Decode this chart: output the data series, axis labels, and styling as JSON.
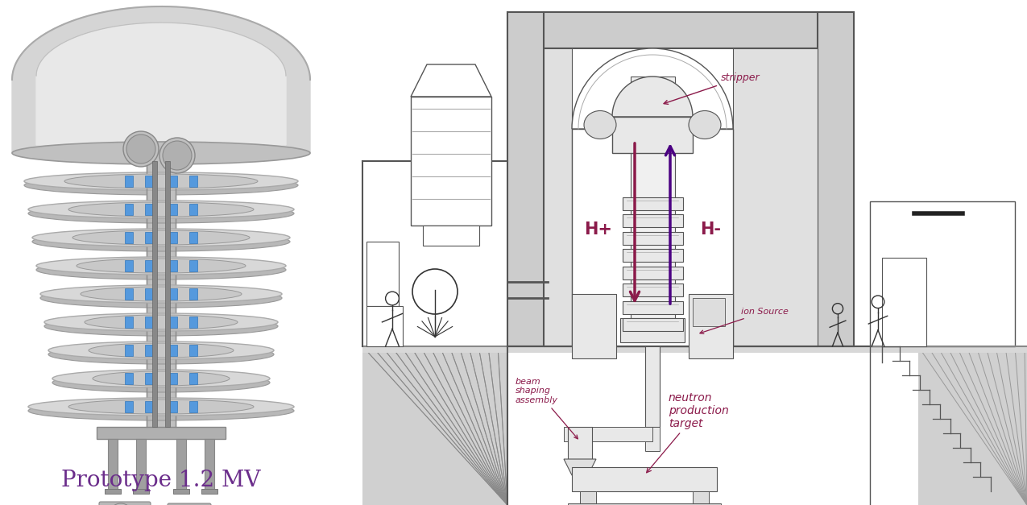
{
  "prototype_label": "Prototype 1.2 MV",
  "prototype_label_color": "#6B2D8B",
  "prototype_label_fontsize": 20,
  "labels": {
    "stripper": "stripper",
    "H_plus": "H+",
    "H_minus": "H-",
    "ion_source": "ion Source",
    "beam_shaping": "beam\nshaping\nassembly",
    "neutron_target": "neutron\nproduction\ntarget"
  },
  "arrow_color": "#8B1A4A",
  "dark_arrow_color": "#4B0082",
  "label_color": "#8B1A4A",
  "bg_color": "#ffffff",
  "line_color": "#333333",
  "wall_fc": "#cccccc",
  "wall_ec": "#555555",
  "interior_fc": "#f8f8f8",
  "ground_hatch_fc": "#c8c8c8",
  "scale_bar_color": "#222222",
  "person_color": "#333333",
  "tank_stripe_color": "#aaaaaa"
}
